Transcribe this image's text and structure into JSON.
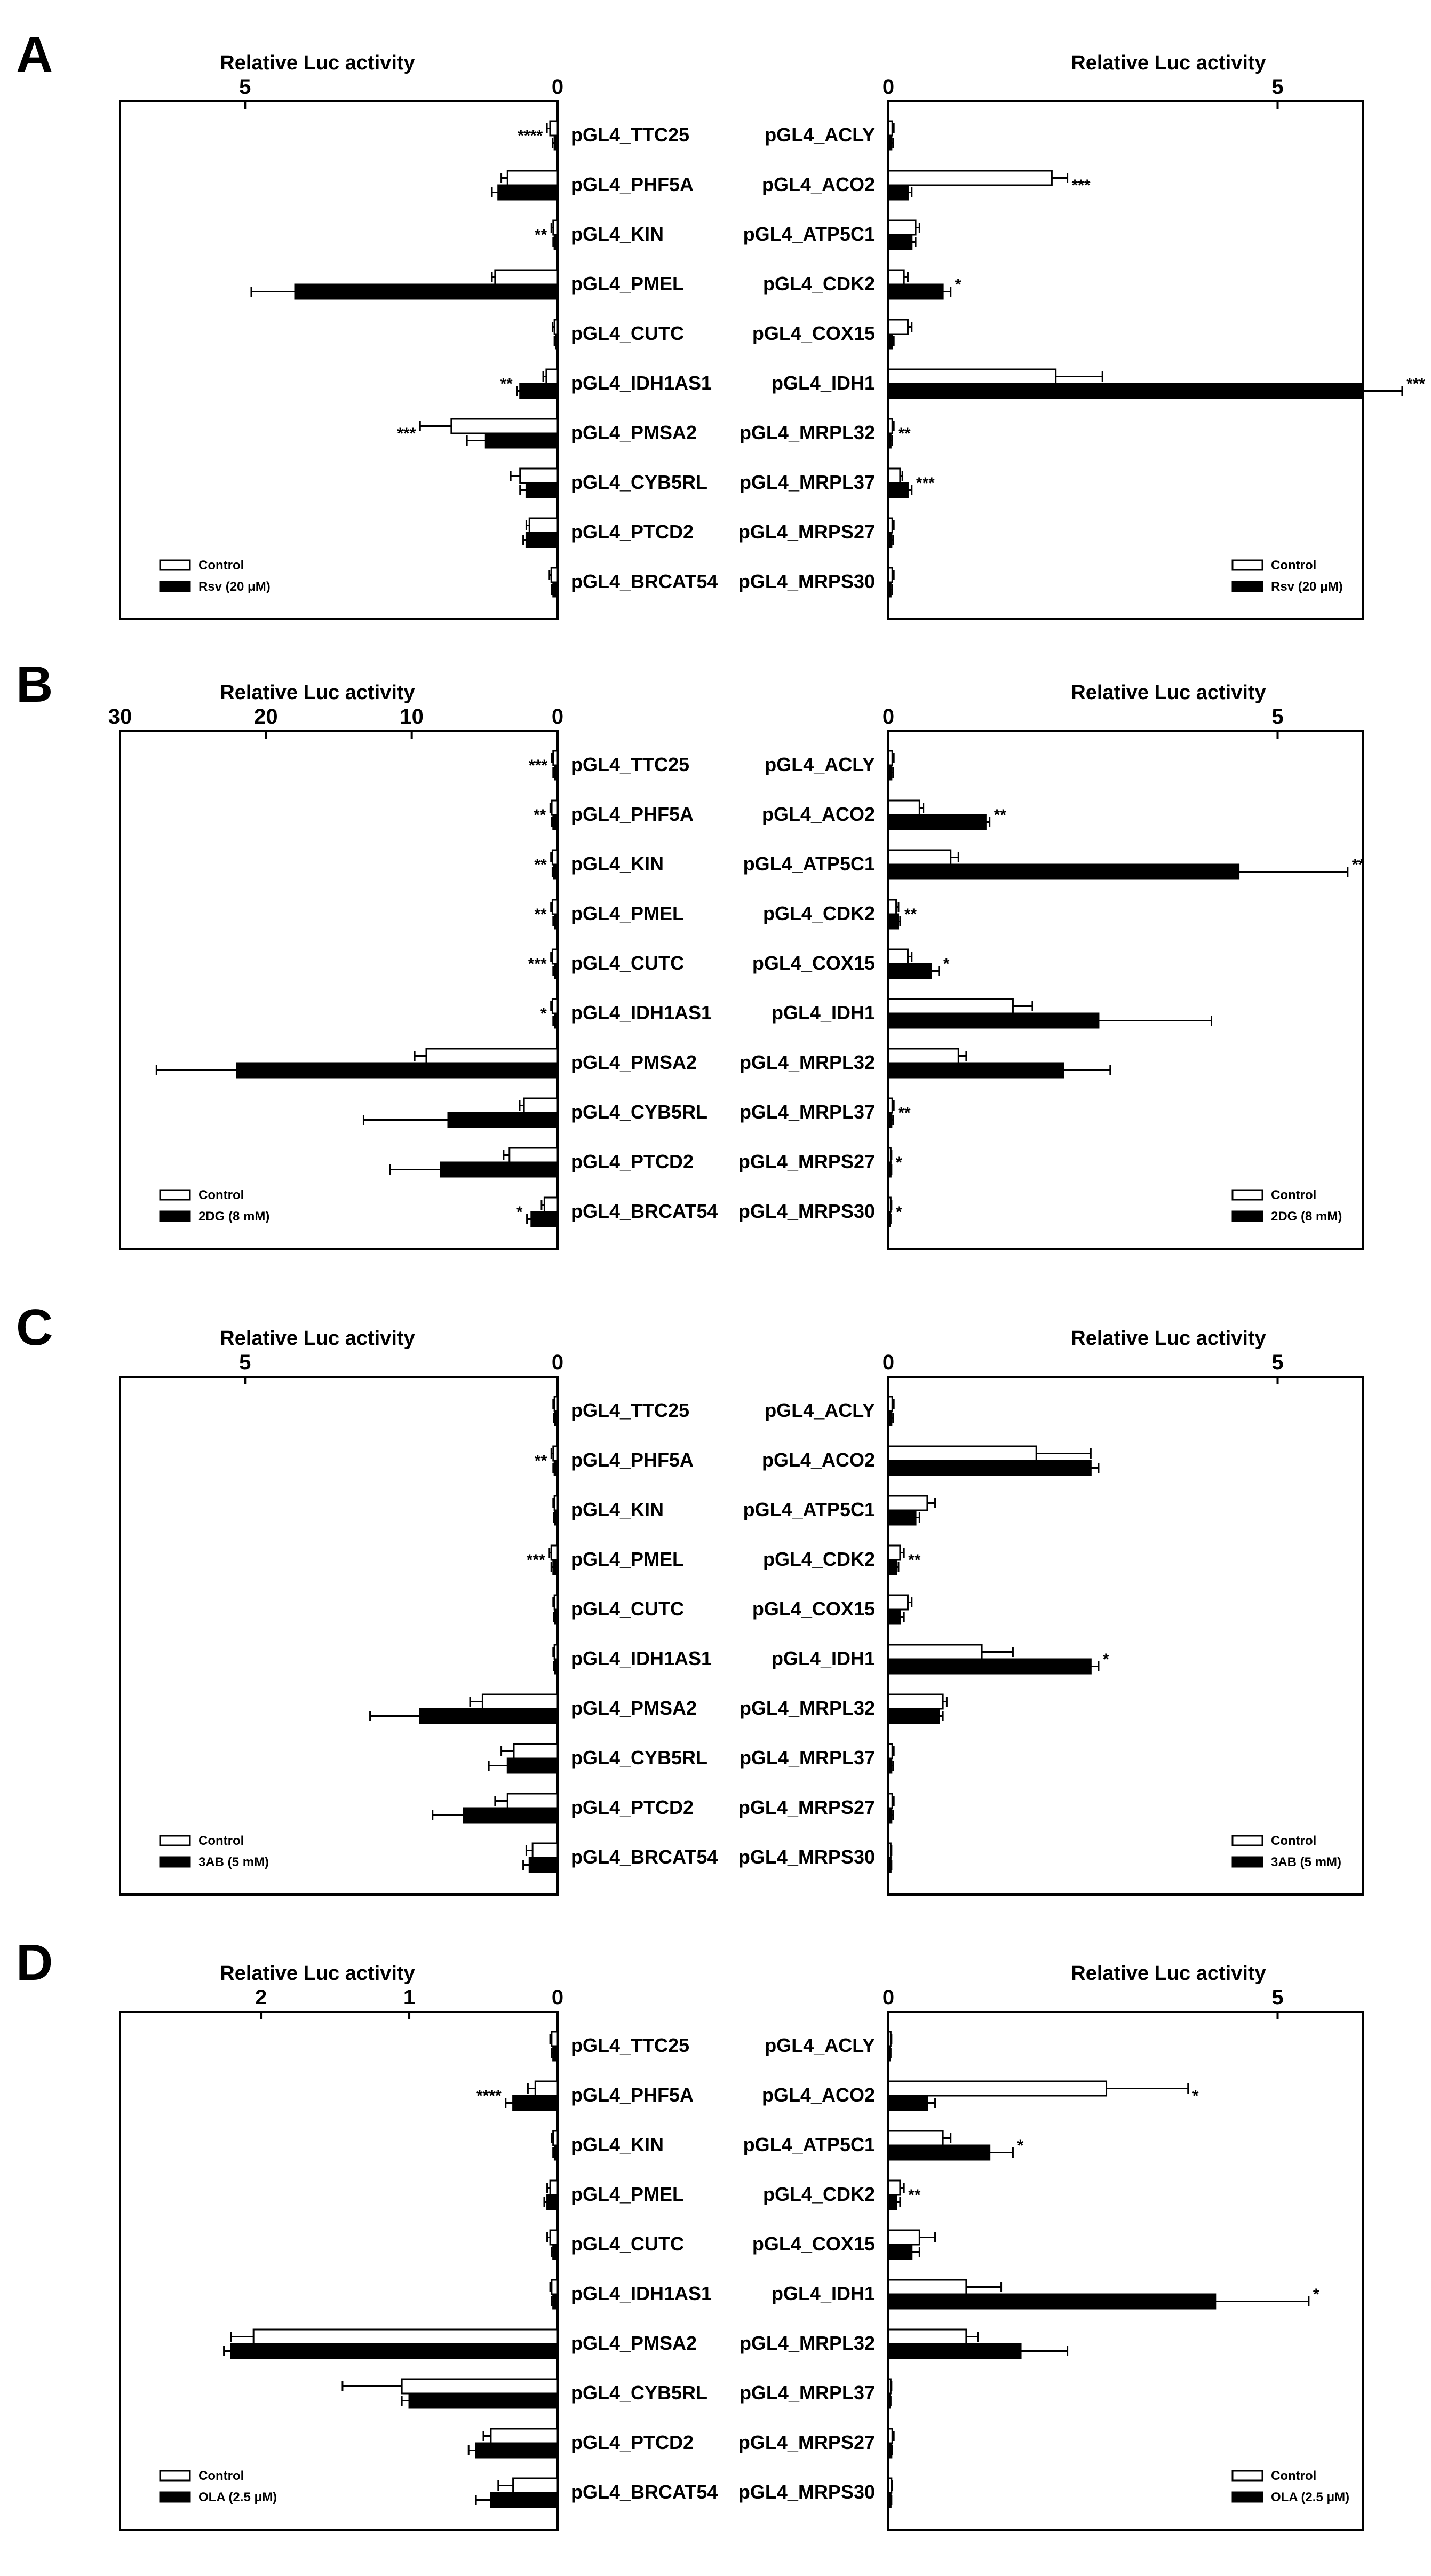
{
  "colors": {
    "control": "#ffffff",
    "treated": "#000000",
    "stroke": "#000000"
  },
  "chart_data": [
    {
      "panel": "A",
      "type": "bar",
      "orientation": "horizontal",
      "xlabel_left": "Relative Luc activity",
      "xlabel_right": "Relative Luc activity",
      "left_ticks": [
        "5",
        "0"
      ],
      "right_ticks": [
        "0",
        "5"
      ],
      "left_xlim": [
        0,
        7
      ],
      "right_xlim": [
        0,
        6.1
      ],
      "legend": {
        "control": "Control",
        "treated": "Rsv (20 μM)"
      },
      "left_categories": [
        "pGL4_TTC25",
        "pGL4_PHF5A",
        "pGL4_KIN",
        "pGL4_PMEL",
        "pGL4_CUTC",
        "pGL4_IDH1AS1",
        "pGL4_PMSA2",
        "pGL4_CYB5RL",
        "pGL4_PTCD2",
        "pGL4_BRCAT54"
      ],
      "left_control": [
        0.12,
        0.8,
        0.07,
        1.0,
        0.05,
        0.18,
        1.7,
        0.6,
        0.45,
        0.1
      ],
      "left_control_err": [
        0.05,
        0.1,
        0.03,
        0.05,
        0.03,
        0.05,
        0.5,
        0.15,
        0.05,
        0.03
      ],
      "left_treated": [
        0.05,
        0.95,
        0.05,
        4.2,
        0.03,
        0.6,
        1.15,
        0.5,
        0.5,
        0.07
      ],
      "left_treated_err": [
        0.03,
        0.1,
        0.02,
        0.7,
        0.02,
        0.05,
        0.3,
        0.1,
        0.05,
        0.02
      ],
      "left_sig": [
        "****",
        "",
        "**",
        "",
        "",
        "**",
        "***",
        "",
        "",
        ""
      ],
      "right_categories": [
        "pGL4_ACLY",
        "pGL4_ACO2",
        "pGL4_ATP5C1",
        "pGL4_CDK2",
        "pGL4_COX15",
        "pGL4_IDH1",
        "pGL4_MRPL32",
        "pGL4_MRPL37",
        "pGL4_MRPS27",
        "pGL4_MRPS30"
      ],
      "right_control": [
        0.05,
        2.1,
        0.35,
        0.2,
        0.25,
        2.15,
        0.05,
        0.15,
        0.05,
        0.05
      ],
      "right_control_err": [
        0.02,
        0.2,
        0.05,
        0.05,
        0.05,
        0.6,
        0.02,
        0.03,
        0.02,
        0.02
      ],
      "right_treated": [
        0.04,
        0.25,
        0.3,
        0.7,
        0.05,
        6.1,
        0.03,
        0.25,
        0.04,
        0.03
      ],
      "right_treated_err": [
        0.02,
        0.05,
        0.05,
        0.1,
        0.02,
        0.5,
        0.02,
        0.05,
        0.02,
        0.02
      ],
      "right_sig": [
        "",
        "***",
        "",
        "*",
        "",
        "***",
        "**",
        "***",
        "",
        ""
      ]
    },
    {
      "panel": "B",
      "type": "bar",
      "orientation": "horizontal",
      "xlabel_left": "Relative Luc activity",
      "xlabel_right": "Relative Luc activity",
      "left_ticks": [
        "30",
        "20",
        "10",
        "0"
      ],
      "right_ticks": [
        "0",
        "5"
      ],
      "left_xlim": [
        0,
        30
      ],
      "right_xlim": [
        0,
        6.1
      ],
      "legend": {
        "control": "Control",
        "treated": "2DG (8 mM)"
      },
      "left_categories": [
        "pGL4_TTC25",
        "pGL4_PHF5A",
        "pGL4_KIN",
        "pGL4_PMEL",
        "pGL4_CUTC",
        "pGL4_IDH1AS1",
        "pGL4_PMSA2",
        "pGL4_CYB5RL",
        "pGL4_PTCD2",
        "pGL4_BRCAT54"
      ],
      "left_control": [
        0.3,
        0.4,
        0.35,
        0.35,
        0.35,
        0.35,
        9.0,
        2.3,
        3.3,
        0.9
      ],
      "left_control_err": [
        0.1,
        0.1,
        0.1,
        0.1,
        0.1,
        0.1,
        0.8,
        0.3,
        0.4,
        0.2
      ],
      "left_treated": [
        0.2,
        0.3,
        0.25,
        0.2,
        0.2,
        0.2,
        22.0,
        7.5,
        8.0,
        1.8
      ],
      "left_treated_err": [
        0.1,
        0.1,
        0.1,
        0.1,
        0.1,
        0.1,
        5.5,
        5.8,
        3.5,
        0.3
      ],
      "left_sig": [
        "***",
        "**",
        "**",
        "**",
        "***",
        "*",
        "",
        "",
        "",
        "*"
      ],
      "right_categories": [
        "pGL4_ACLY",
        "pGL4_ACO2",
        "pGL4_ATP5C1",
        "pGL4_CDK2",
        "pGL4_COX15",
        "pGL4_IDH1",
        "pGL4_MRPL32",
        "pGL4_MRPL37",
        "pGL4_MRPS27",
        "pGL4_MRPS30"
      ],
      "right_control": [
        0.05,
        0.4,
        0.8,
        0.1,
        0.25,
        1.6,
        0.9,
        0.05,
        0.03,
        0.03
      ],
      "right_control_err": [
        0.02,
        0.05,
        0.1,
        0.03,
        0.05,
        0.25,
        0.1,
        0.02,
        0.01,
        0.01
      ],
      "right_treated": [
        0.04,
        1.25,
        4.5,
        0.12,
        0.55,
        2.7,
        2.25,
        0.04,
        0.03,
        0.02
      ],
      "right_treated_err": [
        0.02,
        0.05,
        1.4,
        0.03,
        0.1,
        1.45,
        0.6,
        0.02,
        0.01,
        0.01
      ],
      "right_sig": [
        "",
        "**",
        "**",
        "**",
        "*",
        "",
        "",
        "**",
        "*",
        "*"
      ]
    },
    {
      "panel": "C",
      "type": "bar",
      "orientation": "horizontal",
      "xlabel_left": "Relative Luc activity",
      "xlabel_right": "Relative Luc activity",
      "left_ticks": [
        "5",
        "0"
      ],
      "right_ticks": [
        "0",
        "5"
      ],
      "left_xlim": [
        0,
        7
      ],
      "right_xlim": [
        0,
        6.1
      ],
      "legend": {
        "control": "Control",
        "treated": "3AB (5 mM)"
      },
      "left_categories": [
        "pGL4_TTC25",
        "pGL4_PHF5A",
        "pGL4_KIN",
        "pGL4_PMEL",
        "pGL4_CUTC",
        "pGL4_IDH1AS1",
        "pGL4_PMSA2",
        "pGL4_CYB5RL",
        "pGL4_PTCD2",
        "pGL4_BRCAT54"
      ],
      "left_control": [
        0.05,
        0.07,
        0.05,
        0.1,
        0.05,
        0.05,
        1.2,
        0.7,
        0.8,
        0.4
      ],
      "left_control_err": [
        0.02,
        0.03,
        0.02,
        0.03,
        0.02,
        0.02,
        0.2,
        0.2,
        0.2,
        0.1
      ],
      "left_treated": [
        0.04,
        0.05,
        0.04,
        0.07,
        0.04,
        0.04,
        2.2,
        0.8,
        1.5,
        0.45
      ],
      "left_treated_err": [
        0.02,
        0.02,
        0.02,
        0.03,
        0.02,
        0.02,
        0.8,
        0.3,
        0.5,
        0.1
      ],
      "left_sig": [
        "",
        "**",
        "",
        "***",
        "",
        "",
        "",
        "",
        "",
        ""
      ],
      "right_categories": [
        "pGL4_ACLY",
        "pGL4_ACO2",
        "pGL4_ATP5C1",
        "pGL4_CDK2",
        "pGL4_COX15",
        "pGL4_IDH1",
        "pGL4_MRPL32",
        "pGL4_MRPL37",
        "pGL4_MRPS27",
        "pGL4_MRPS30"
      ],
      "right_control": [
        0.05,
        1.9,
        0.5,
        0.15,
        0.25,
        1.2,
        0.7,
        0.05,
        0.05,
        0.03
      ],
      "right_control_err": [
        0.02,
        0.7,
        0.1,
        0.05,
        0.05,
        0.4,
        0.05,
        0.02,
        0.02,
        0.01
      ],
      "right_treated": [
        0.04,
        2.6,
        0.35,
        0.1,
        0.15,
        2.6,
        0.65,
        0.04,
        0.04,
        0.03
      ],
      "right_treated_err": [
        0.02,
        0.1,
        0.05,
        0.03,
        0.05,
        0.1,
        0.05,
        0.02,
        0.02,
        0.01
      ],
      "right_sig": [
        "",
        "",
        "",
        "**",
        "",
        "*",
        "",
        "",
        "",
        ""
      ]
    },
    {
      "panel": "D",
      "type": "bar",
      "orientation": "horizontal",
      "xlabel_left": "Relative Luc activity",
      "xlabel_right": "Relative Luc activity",
      "left_ticks": [
        "2",
        "1",
        "0"
      ],
      "right_ticks": [
        "0",
        "5"
      ],
      "left_xlim": [
        0,
        2.95
      ],
      "right_xlim": [
        0,
        6.1
      ],
      "legend": {
        "control": "Control",
        "treated": "OLA (2.5 μM)"
      },
      "left_categories": [
        "pGL4_TTC25",
        "pGL4_PHF5A",
        "pGL4_KIN",
        "pGL4_PMEL",
        "pGL4_CUTC",
        "pGL4_IDH1AS1",
        "pGL4_PMSA2",
        "pGL4_CYB5RL",
        "pGL4_PTCD2",
        "pGL4_BRCAT54"
      ],
      "left_control": [
        0.04,
        0.15,
        0.03,
        0.05,
        0.05,
        0.04,
        2.05,
        1.05,
        0.45,
        0.3
      ],
      "left_control_err": [
        0.01,
        0.05,
        0.01,
        0.02,
        0.02,
        0.01,
        0.15,
        0.4,
        0.05,
        0.1
      ],
      "left_treated": [
        0.03,
        0.3,
        0.02,
        0.07,
        0.03,
        0.03,
        2.2,
        1.0,
        0.55,
        0.45
      ],
      "left_treated_err": [
        0.01,
        0.05,
        0.01,
        0.02,
        0.01,
        0.01,
        0.05,
        0.05,
        0.05,
        0.1
      ],
      "left_sig": [
        "",
        "****",
        "",
        "",
        "",
        "",
        "",
        "",
        "",
        ""
      ],
      "right_categories": [
        "pGL4_ACLY",
        "pGL4_ACO2",
        "pGL4_ATP5C1",
        "pGL4_CDK2",
        "pGL4_COX15",
        "pGL4_IDH1",
        "pGL4_MRPL32",
        "pGL4_MRPL37",
        "pGL4_MRPS27",
        "pGL4_MRPS30"
      ],
      "right_control": [
        0.03,
        2.8,
        0.7,
        0.15,
        0.4,
        1.0,
        1.0,
        0.03,
        0.05,
        0.04
      ],
      "right_control_err": [
        0.01,
        1.05,
        0.1,
        0.05,
        0.2,
        0.45,
        0.15,
        0.01,
        0.02,
        0.01
      ],
      "right_treated": [
        0.02,
        0.5,
        1.3,
        0.1,
        0.3,
        4.2,
        1.7,
        0.02,
        0.04,
        0.03
      ],
      "right_treated_err": [
        0.01,
        0.1,
        0.3,
        0.05,
        0.1,
        1.2,
        0.6,
        0.01,
        0.01,
        0.01
      ],
      "right_sig": [
        "",
        "*",
        "*",
        "**",
        "",
        "*",
        "",
        "",
        "",
        ""
      ]
    }
  ]
}
